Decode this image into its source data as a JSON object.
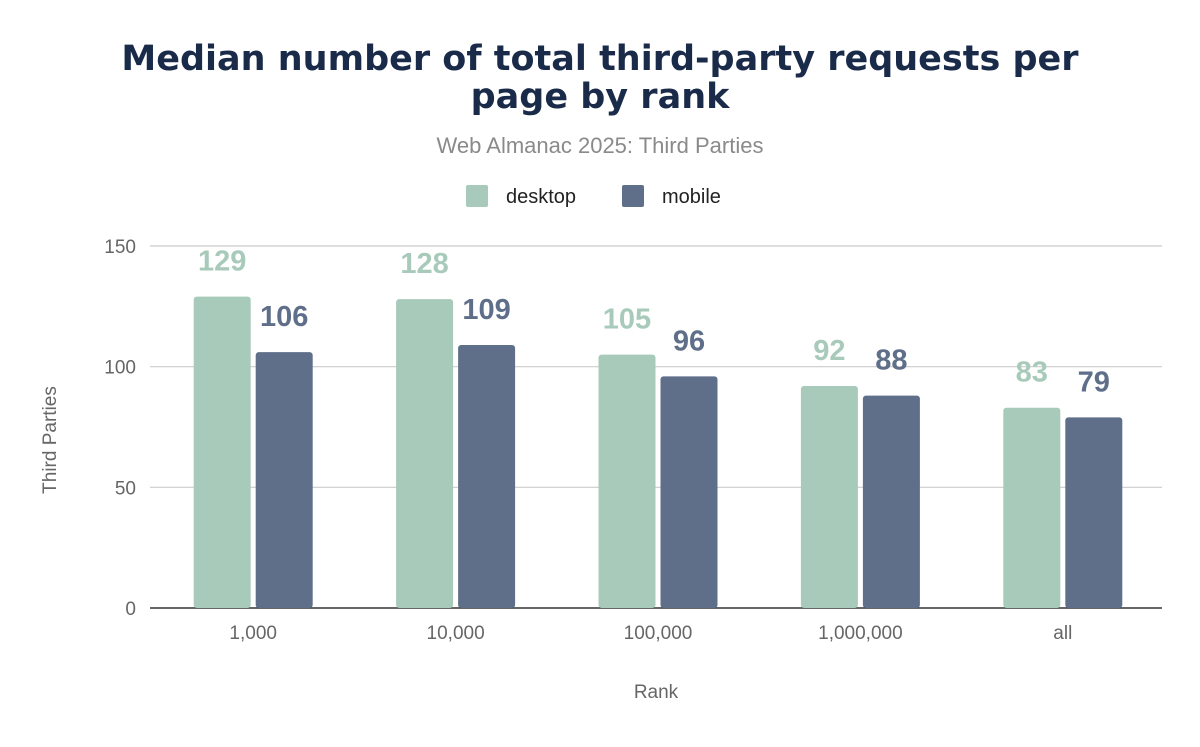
{
  "chart_data": {
    "type": "bar",
    "title": "Median number of total third-party requests per page by rank",
    "title_lines": [
      "Median number of total third-party requests per",
      "page by rank"
    ],
    "subtitle": "Web Almanac 2025: Third Parties",
    "xlabel": "Rank",
    "ylabel": "Third Parties",
    "categories": [
      "1,000",
      "10,000",
      "100,000",
      "1,000,000",
      "all"
    ],
    "series": [
      {
        "name": "desktop",
        "color": "#a8cabb",
        "values": [
          129,
          128,
          105,
          92,
          83
        ]
      },
      {
        "name": "mobile",
        "color": "#5f6f8a",
        "values": [
          106,
          109,
          96,
          88,
          79
        ]
      }
    ],
    "ylim": [
      0,
      150
    ],
    "yticks": [
      0,
      50,
      100,
      150
    ],
    "grid": true,
    "legend": "top-center"
  }
}
